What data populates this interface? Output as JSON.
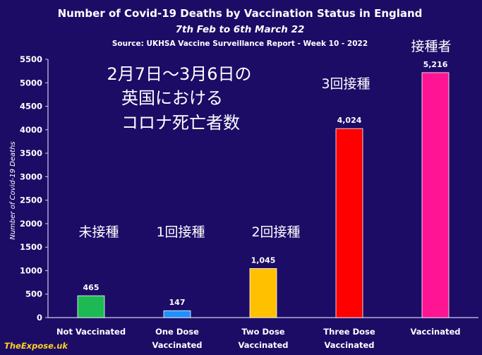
{
  "chart_data": {
    "type": "bar",
    "title": "Number of Covid-19 Deaths by Vaccination Status in England",
    "subtitle": "7th Feb to 6th March 22",
    "source": "Source: UKHSA Vaccine Surveillance Report - Week 10 - 2022",
    "ylabel": "Number of Covid-19 Deaths",
    "ylim": [
      0,
      5500
    ],
    "yticks": [
      "0",
      "500",
      "1000",
      "1500",
      "2000",
      "2500",
      "3000",
      "3500",
      "4000",
      "4500",
      "5000",
      "5500"
    ],
    "grid": false,
    "categories": [
      [
        "Not Vaccinated"
      ],
      [
        "One Dose",
        "Vaccinated"
      ],
      [
        "Two Dose",
        "Vaccinated"
      ],
      [
        "Three Dose",
        "Vaccinated"
      ],
      [
        "Vaccinated"
      ]
    ],
    "values": [
      465,
      147,
      1045,
      4024,
      5216
    ],
    "value_labels": [
      "465",
      "147",
      "1,045",
      "4,024",
      "5,216"
    ],
    "colors": [
      "#1db954",
      "#1e90ff",
      "#ffc000",
      "#ff0000",
      "#ff1493"
    ],
    "annotations": [
      "未接種",
      "1回接種",
      "2回接種",
      "3回接種",
      "接種者"
    ]
  },
  "overlay": {
    "lines": [
      "2月7日～3月6日の",
      "英国における",
      "コロナ死亡者数"
    ]
  },
  "brand": "TheExpose.uk"
}
